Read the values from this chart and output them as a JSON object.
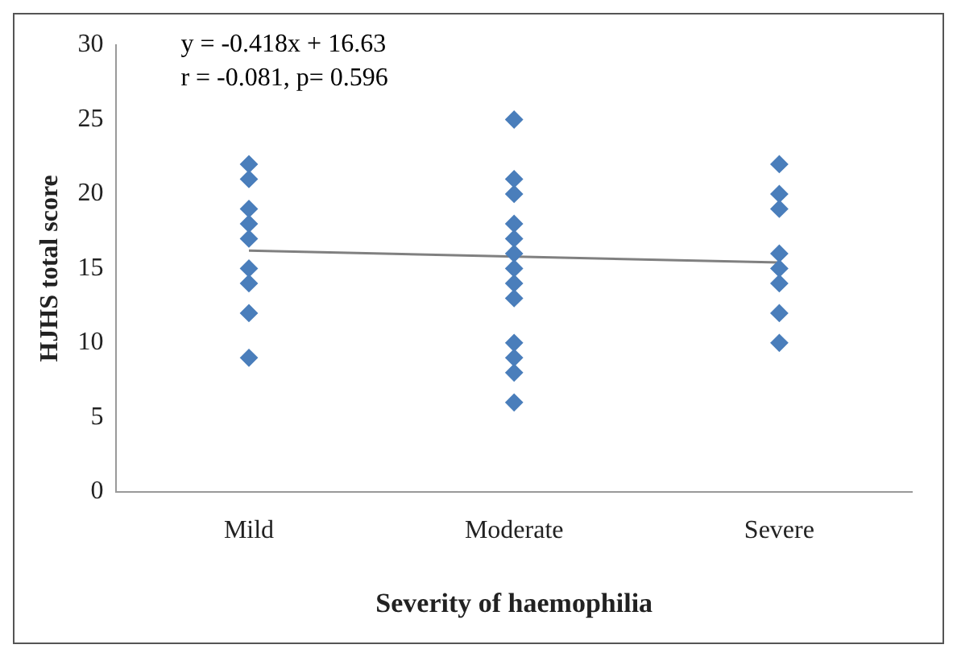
{
  "chart_data": {
    "type": "scatter",
    "xlabel": "Severity of haemophilia",
    "ylabel": "HJHS total score",
    "annotations": [
      "y = -0.418x + 16.63",
      "r = -0.081, p= 0.596"
    ],
    "categories": [
      "Mild",
      "Moderate",
      "Severe"
    ],
    "ylim": [
      0,
      30
    ],
    "yticks": [
      0,
      5,
      10,
      15,
      20,
      25,
      30
    ],
    "grid": false,
    "legend": false,
    "series": [
      {
        "type": "scatter",
        "marker": "diamond",
        "color": "#4a7ebb",
        "x": [
          "Mild",
          "Mild",
          "Mild",
          "Mild",
          "Mild",
          "Mild",
          "Mild",
          "Mild",
          "Mild",
          "Moderate",
          "Moderate",
          "Moderate",
          "Moderate",
          "Moderate",
          "Moderate",
          "Moderate",
          "Moderate",
          "Moderate",
          "Moderate",
          "Moderate",
          "Moderate",
          "Moderate",
          "Severe",
          "Severe",
          "Severe",
          "Severe",
          "Severe",
          "Severe",
          "Severe",
          "Severe"
        ],
        "values": [
          22,
          21,
          19,
          18,
          17,
          15,
          14,
          12,
          9,
          25,
          21,
          20,
          18,
          17,
          16,
          15,
          14,
          13,
          10,
          9,
          8,
          6,
          22,
          20,
          19,
          16,
          15,
          14,
          12,
          10
        ]
      },
      {
        "type": "line",
        "marker": "none",
        "color": "#808080",
        "x": [
          "Mild",
          "Severe"
        ],
        "values": [
          16.2,
          15.4
        ]
      }
    ]
  }
}
